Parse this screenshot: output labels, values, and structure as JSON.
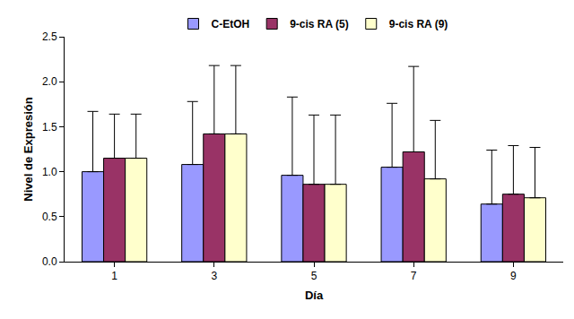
{
  "chart_data": {
    "type": "bar",
    "x_label": "Día",
    "y_label": "Nivel de Expresión",
    "categories": [
      "1",
      "3",
      "5",
      "7",
      "9"
    ],
    "series": [
      {
        "name": "C-EtOH",
        "color": "#9999ff",
        "values": [
          1.0,
          1.08,
          0.96,
          1.05,
          0.64
        ],
        "errors": [
          0.67,
          0.7,
          0.87,
          0.71,
          0.6
        ]
      },
      {
        "name": "9-cis RA (5)",
        "color": "#993366",
        "values": [
          1.15,
          1.42,
          0.86,
          1.22,
          0.75
        ],
        "errors": [
          0.49,
          0.76,
          0.77,
          0.95,
          0.54
        ]
      },
      {
        "name": "9-cis RA (9)",
        "color": "#ffffcc",
        "values": [
          1.15,
          1.42,
          0.86,
          0.92,
          0.71
        ],
        "errors": [
          0.49,
          0.76,
          0.77,
          0.65,
          0.56
        ]
      }
    ],
    "ylim": [
      0,
      2.5
    ],
    "yticks": [
      {
        "value": 0,
        "label": "0.0"
      },
      0.5,
      {
        "value": 1,
        "label": "1.0"
      },
      1.5,
      {
        "value": 2,
        "label": "2.0"
      },
      2.5
    ],
    "grid": false,
    "legend": "top"
  }
}
